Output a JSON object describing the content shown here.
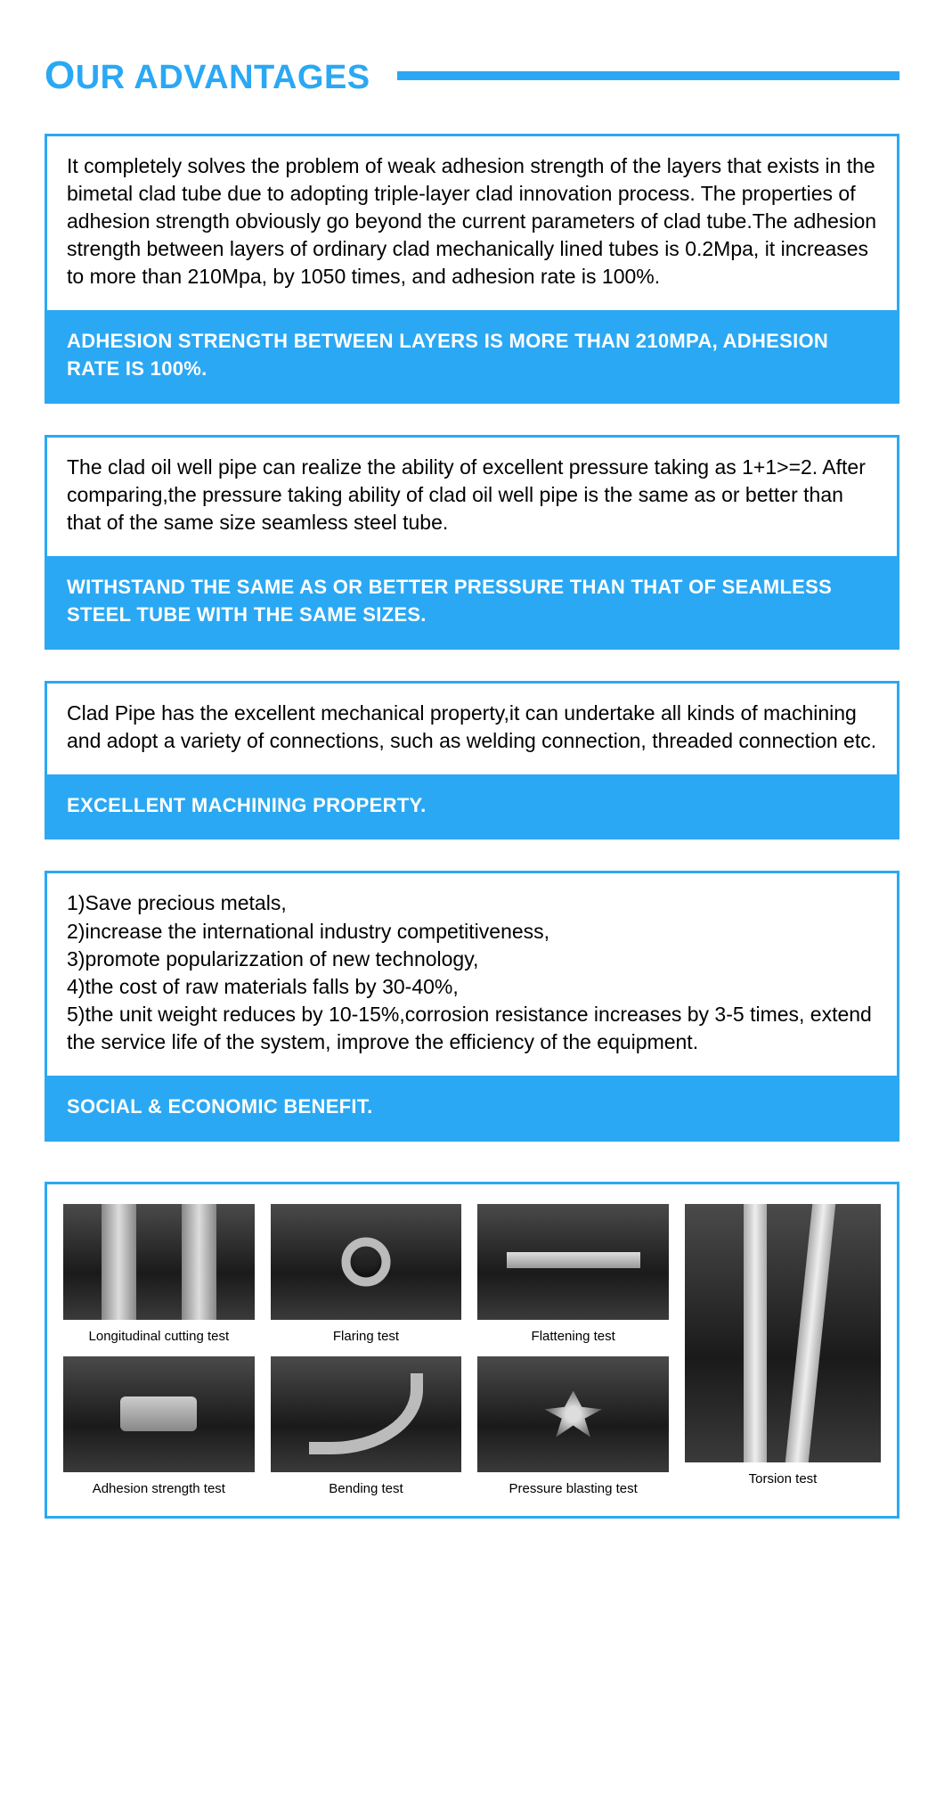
{
  "colors": {
    "accent": "#2ba8f3",
    "text": "#000000",
    "footer_text": "#ffffff",
    "page_bg": "#ffffff"
  },
  "typography": {
    "title_fontsize": 38,
    "title_first_letter_fontsize": 44,
    "body_fontsize": 23,
    "footer_fontsize": 22,
    "caption_fontsize": 15
  },
  "title": {
    "first": "O",
    "rest": "UR ADVANTAGES"
  },
  "advantages": [
    {
      "body": "It completely solves the problem of weak adhesion strength of the layers that exists in the bimetal clad tube due to adopting triple-layer clad innovation process. The properties of adhesion strength obviously go beyond the current parameters of clad tube.The adhesion strength between layers of ordinary clad mechanically lined tubes is 0.2Mpa, it increases to more than 210Mpa, by 1050 times, and adhesion rate is 100%.",
      "footer": "ADHESION STRENGTH BETWEEN LAYERS IS MORE THAN 210MPA, ADHESION RATE IS 100%."
    },
    {
      "body": "The clad oil well pipe can realize the ability of excellent pressure taking as 1+1>=2. After comparing,the pressure taking ability of clad oil well pipe is the same as or better than that of the same size seamless steel tube.",
      "footer": "WITHSTAND THE SAME AS OR BETTER PRESSURE THAN THAT OF SEAMLESS STEEL TUBE WITH THE SAME SIZES."
    },
    {
      "body": "Clad Pipe has the excellent mechanical property,it can undertake all kinds of machining and adopt a variety of connections, such as welding connection, threaded connection etc.",
      "footer": "EXCELLENT MACHINING PROPERTY."
    },
    {
      "body": "1)Save precious metals,\n2)increase the international industry competitiveness,\n3)promote popularizzation of new technology,\n4)the cost of raw materials falls by 30-40%,\n5)the unit weight reduces by 10-15%,corrosion resistance increases by 3-5 times, extend the service life of the system, improve the efficiency of the equipment.",
      "footer": "SOCIAL & ECONOMIC BENEFIT."
    }
  ],
  "gallery": {
    "left": [
      {
        "caption": "Longitudinal cutting test"
      },
      {
        "caption": "Flaring test"
      },
      {
        "caption": "Flattening test"
      },
      {
        "caption": "Adhesion strength test"
      },
      {
        "caption": "Bending test"
      },
      {
        "caption": "Pressure blasting test"
      }
    ],
    "right": {
      "caption": "Torsion test"
    }
  }
}
